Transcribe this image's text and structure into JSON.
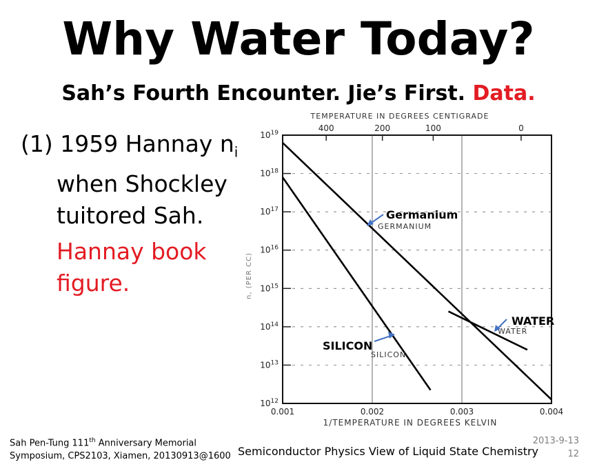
{
  "slide": {
    "title": "Why Water Today?",
    "subtitle_black": "Sah’s Fourth Encounter.  Jie’s First.",
    "subtitle_red": "Data.",
    "bullet1_line1": "(1) 1959 Hannay n",
    "bullet1_sub": "i",
    "bullet1_line2": "when Shockley",
    "bullet1_line3": "tuitored Sah.",
    "bullet2_line1": "Hannay book",
    "bullet2_line2": "figure.",
    "accent_color": "#e31b23"
  },
  "footer": {
    "left_line1_pre": "Sah Pen-Tung 111",
    "left_line1_sup": "th",
    "left_line1_post": " Anniversary Memorial",
    "left_line2": "Symposium, CPS2103, Xiamen, 20130913@1600",
    "center": "Semiconductor Physics View of Liquid State Chemistry",
    "right_date": "2013-9-13",
    "right_page": "12"
  },
  "chart_data": {
    "type": "line",
    "xlabel": "1/TEMPERATURE  IN  DEGREES  KELVIN",
    "top_axis_label": "TEMPERATURE  IN  DEGREES  CENTIGRADE",
    "ylabel": "n, (PER CC)",
    "x_ticks": [
      "0.001",
      "0.002",
      "0.003",
      "0.004"
    ],
    "x_range": [
      0.001,
      0.004
    ],
    "top_ticks": [
      {
        "label": "400",
        "x": 0.001486
      },
      {
        "label": "200",
        "x": 0.002113
      },
      {
        "label": "100",
        "x": 0.00268
      },
      {
        "label": "0",
        "x": 0.003661
      }
    ],
    "y_log_range": [
      12,
      19
    ],
    "y_ticks": [
      {
        "base": "10",
        "exp": "12",
        "v": 12
      },
      {
        "base": "10",
        "exp": "13",
        "v": 13
      },
      {
        "base": "10",
        "exp": "14",
        "v": 14
      },
      {
        "base": "10",
        "exp": "15",
        "v": 15
      },
      {
        "base": "10",
        "exp": "16",
        "v": 16
      },
      {
        "base": "10",
        "exp": "17",
        "v": 17
      },
      {
        "base": "10",
        "exp": "18",
        "v": 18
      },
      {
        "base": "10",
        "exp": "19",
        "v": 19
      }
    ],
    "series": [
      {
        "name": "GERMANIUM",
        "points": [
          [
            0.001,
            18.8
          ],
          [
            0.004,
            12.1
          ]
        ]
      },
      {
        "name": "SILICON",
        "points": [
          [
            0.001,
            17.9
          ],
          [
            0.00265,
            12.35
          ]
        ]
      },
      {
        "name": "WATER",
        "points": [
          [
            0.00285,
            14.4
          ],
          [
            0.00373,
            13.4
          ]
        ]
      }
    ],
    "annotations": [
      {
        "text": "Germanium",
        "color": "#000000",
        "arrow_color": "#4472c4"
      },
      {
        "text": "SILICON",
        "color": "#000000",
        "arrow_color": "#4472c4"
      },
      {
        "text": "WATER",
        "color": "#000000",
        "arrow_color": "#4472c4"
      }
    ]
  }
}
